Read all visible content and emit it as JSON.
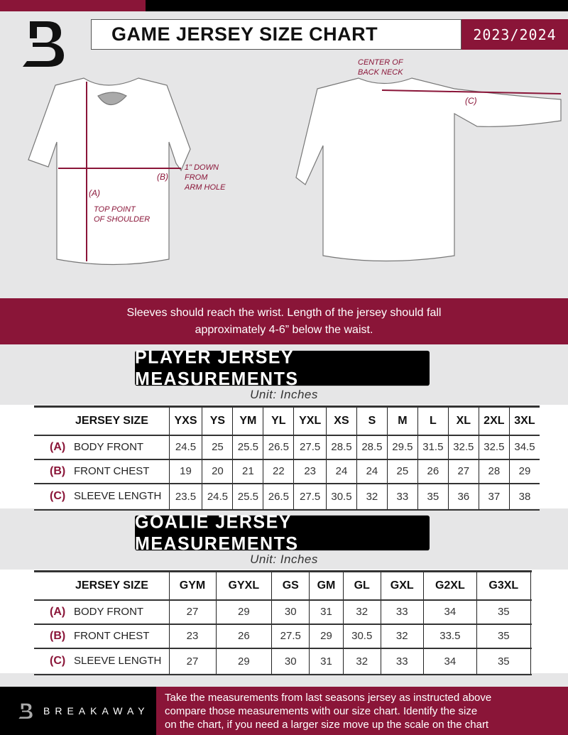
{
  "header": {
    "title": "GAME JERSEY SIZE CHART",
    "season": "2023/2024",
    "logo": "B-logo"
  },
  "diagram": {
    "notes": {
      "center_back_neck": [
        "CENTER OF",
        "BACK NECK"
      ],
      "down_from_arm_hole": [
        "1\" DOWN",
        "FROM",
        "ARM HOLE"
      ],
      "top_point_shoulder": [
        "TOP POINT",
        "OF SHOULDER"
      ]
    },
    "labels": {
      "a": "(A)",
      "b": "(B)",
      "c": "(C)"
    }
  },
  "instruction_band": [
    "Sleeves should reach the wrist. Length of the jersey should fall",
    "approximately 4-6” below the waist."
  ],
  "player": {
    "heading": "PLAYER JERSEY MEASUREMENTS",
    "unit": "Unit: Inches",
    "size_header": "JERSEY SIZE",
    "sizes": [
      "YXS",
      "YS",
      "YM",
      "YL",
      "YXL",
      "XS",
      "S",
      "M",
      "L",
      "XL",
      "2XL",
      "3XL"
    ],
    "rows": [
      {
        "key": "(A)",
        "label": "BODY FRONT",
        "values": [
          "24.5",
          "25",
          "25.5",
          "26.5",
          "27.5",
          "28.5",
          "28.5",
          "29.5",
          "31.5",
          "32.5",
          "32.5",
          "34.5"
        ]
      },
      {
        "key": "(B)",
        "label": "FRONT CHEST",
        "values": [
          "19",
          "20",
          "21",
          "22",
          "23",
          "24",
          "24",
          "25",
          "26",
          "27",
          "28",
          "29"
        ]
      },
      {
        "key": "(C)",
        "label": "SLEEVE LENGTH",
        "values": [
          "23.5",
          "24.5",
          "25.5",
          "26.5",
          "27.5",
          "30.5",
          "32",
          "33",
          "35",
          "36",
          "37",
          "38"
        ]
      }
    ]
  },
  "goalie": {
    "heading": "GOALIE JERSEY MEASUREMENTS",
    "unit": "Unit: Inches",
    "size_header": "JERSEY SIZE",
    "sizes": [
      "GYM",
      "GYXL",
      "GS",
      "GM",
      "GL",
      "GXL",
      "G2XL",
      "G3XL",
      ""
    ],
    "rows": [
      {
        "key": "(A)",
        "label": "BODY FRONT",
        "values": [
          "27",
          "29",
          "30",
          "31",
          "32",
          "33",
          "34",
          "35",
          ""
        ]
      },
      {
        "key": "(B)",
        "label": "FRONT CHEST",
        "values": [
          "23",
          "26",
          "27.5",
          "29",
          "30.5",
          "32",
          "33.5",
          "35",
          ""
        ]
      },
      {
        "key": "(C)",
        "label": "SLEEVE LENGTH",
        "values": [
          "27",
          "29",
          "30",
          "31",
          "32",
          "33",
          "34",
          "35",
          ""
        ]
      }
    ]
  },
  "footer": {
    "brand": "BREAKAWAY",
    "text": [
      "Take the measurements from last seasons jersey as instructed above",
      "compare those measurements  with our size chart. Identify the size",
      "on the chart, if you need a larger size move up the scale on the chart"
    ]
  },
  "colors": {
    "brand": "#8a1538",
    "background": "#e6e6e7"
  }
}
